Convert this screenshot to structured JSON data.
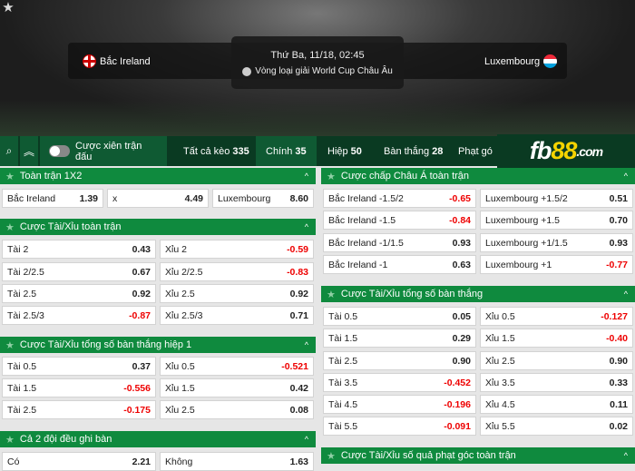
{
  "match": {
    "home": "Bắc Ireland",
    "away": "Luxembourg",
    "datetime": "Thứ Ba, 11/18, 02:45",
    "league": "Vòng loại giải World Cup Châu Âu"
  },
  "toolbar": {
    "parlay_label": "Cược xiên trận đấu",
    "tabs": [
      {
        "label": "Tất cả kèo",
        "count": "335"
      },
      {
        "label": "Chính",
        "count": "35"
      },
      {
        "label": "Hiệp",
        "count": "50"
      },
      {
        "label": "Bàn thắng",
        "count": "28"
      },
      {
        "label": "Phạt gó",
        "count": ""
      }
    ]
  },
  "logo": {
    "a": "fb",
    "b": "88",
    ".com": ".com"
  },
  "colors": {
    "header_green": "#0f8a3e",
    "negative": "#ee0000",
    "toolbar": "#0a3a22"
  },
  "sections": [
    {
      "title": "Toàn trận 1X2",
      "rows": [
        [
          {
            "l": "Bắc Ireland",
            "v": "1.39"
          },
          {
            "l": "x",
            "v": "4.49"
          },
          {
            "l": "Luxembourg",
            "v": "8.60"
          }
        ]
      ]
    },
    {
      "title": "Cược Tài/Xỉu toàn trận",
      "rows": [
        [
          {
            "l": "Tài 2",
            "v": "0.43"
          },
          {
            "l": "Xỉu 2",
            "v": "-0.59"
          }
        ],
        [
          {
            "l": "Tài 2/2.5",
            "v": "0.67"
          },
          {
            "l": "Xỉu 2/2.5",
            "v": "-0.83"
          }
        ],
        [
          {
            "l": "Tài 2.5",
            "v": "0.92"
          },
          {
            "l": "Xỉu 2.5",
            "v": "0.92"
          }
        ],
        [
          {
            "l": "Tài 2.5/3",
            "v": "-0.87"
          },
          {
            "l": "Xỉu 2.5/3",
            "v": "0.71"
          }
        ]
      ]
    },
    {
      "title": "Cược Tài/Xỉu tổng số bàn thắng hiệp 1",
      "rows": [
        [
          {
            "l": "Tài 0.5",
            "v": "0.37"
          },
          {
            "l": "Xỉu 0.5",
            "v": "-0.521"
          }
        ],
        [
          {
            "l": "Tài 1.5",
            "v": "-0.556"
          },
          {
            "l": "Xỉu 1.5",
            "v": "0.42"
          }
        ],
        [
          {
            "l": "Tài 2.5",
            "v": "-0.175"
          },
          {
            "l": "Xỉu 2.5",
            "v": "0.08"
          }
        ]
      ]
    },
    {
      "title": "Cả 2 đội đều ghi bàn",
      "rows": [
        [
          {
            "l": "Có",
            "v": "2.21"
          },
          {
            "l": "Không",
            "v": "1.63"
          }
        ]
      ]
    },
    {
      "title": "Cược chấp Châu Á toàn trận",
      "rows": [
        [
          {
            "l": "Bắc Ireland -1.5/2",
            "v": "-0.65"
          },
          {
            "l": "Luxembourg +1.5/2",
            "v": "0.51"
          }
        ],
        [
          {
            "l": "Bắc Ireland -1.5",
            "v": "-0.84"
          },
          {
            "l": "Luxembourg +1.5",
            "v": "0.70"
          }
        ],
        [
          {
            "l": "Bắc Ireland -1/1.5",
            "v": "0.93"
          },
          {
            "l": "Luxembourg +1/1.5",
            "v": "0.93"
          }
        ],
        [
          {
            "l": "Bắc Ireland -1",
            "v": "0.63"
          },
          {
            "l": "Luxembourg +1",
            "v": "-0.77"
          }
        ]
      ]
    },
    {
      "title": "Cược Tài/Xỉu tổng số bàn thắng",
      "rows": [
        [
          {
            "l": "Tài 0.5",
            "v": "0.05"
          },
          {
            "l": "Xỉu 0.5",
            "v": "-0.127"
          }
        ],
        [
          {
            "l": "Tài 1.5",
            "v": "0.29"
          },
          {
            "l": "Xỉu 1.5",
            "v": "-0.40"
          }
        ],
        [
          {
            "l": "Tài 2.5",
            "v": "0.90"
          },
          {
            "l": "Xỉu 2.5",
            "v": "0.90"
          }
        ],
        [
          {
            "l": "Tài 3.5",
            "v": "-0.452"
          },
          {
            "l": "Xỉu 3.5",
            "v": "0.33"
          }
        ],
        [
          {
            "l": "Tài 4.5",
            "v": "-0.196"
          },
          {
            "l": "Xỉu 4.5",
            "v": "0.11"
          }
        ],
        [
          {
            "l": "Tài 5.5",
            "v": "-0.091"
          },
          {
            "l": "Xỉu 5.5",
            "v": "0.02"
          }
        ]
      ]
    },
    {
      "title": "Cược Tài/Xỉu số quả phạt góc toàn trận",
      "rows": []
    }
  ]
}
